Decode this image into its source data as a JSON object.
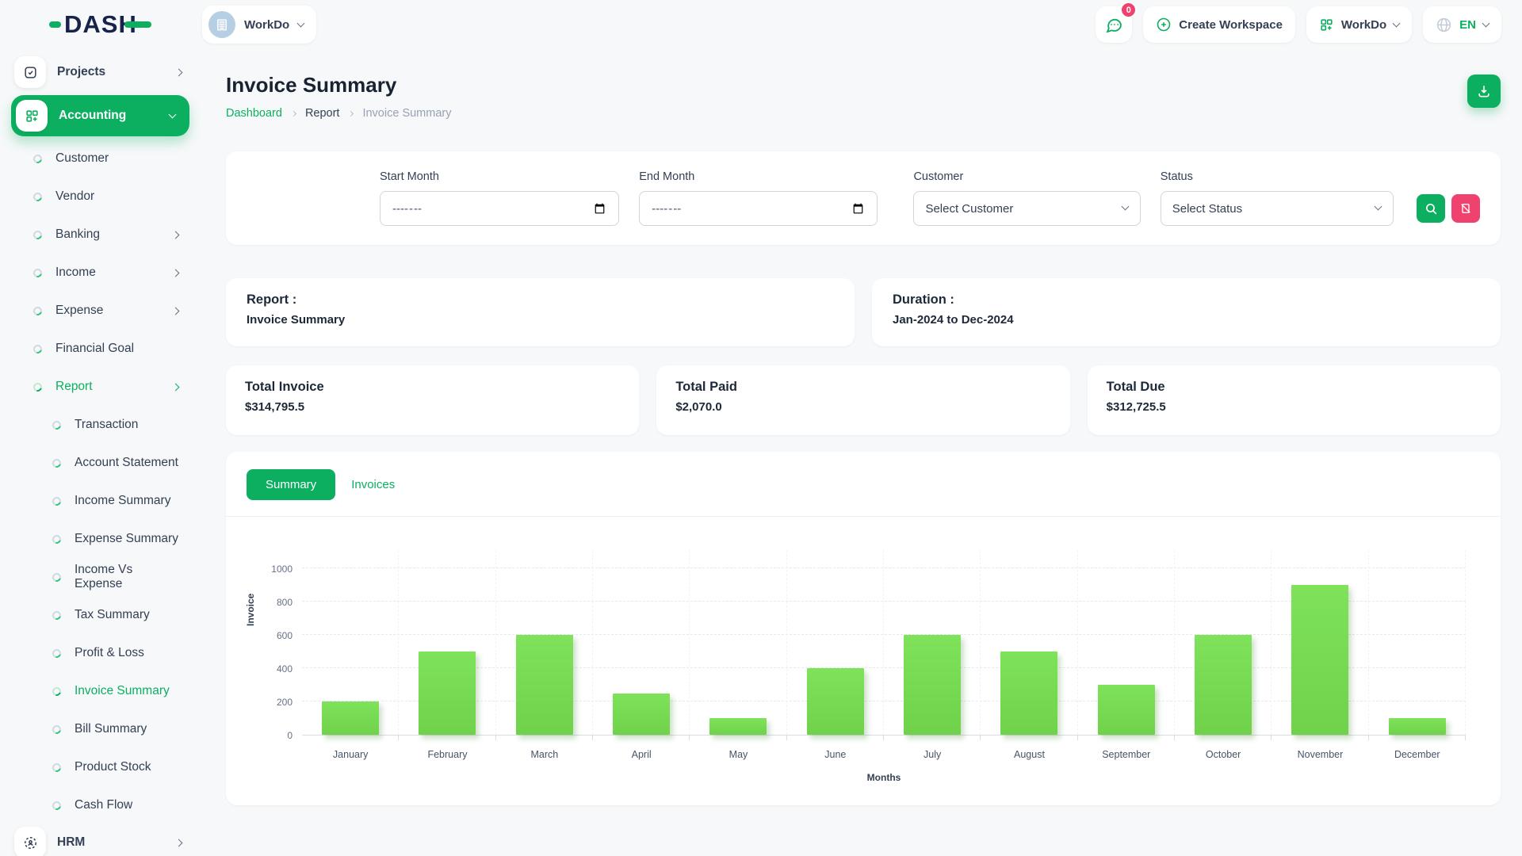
{
  "brand": {
    "logo_text": "DASH"
  },
  "header": {
    "workspace_name": "WorkDo",
    "messages_badge": "0",
    "create_workspace_label": "Create Workspace",
    "account_menu_label": "WorkDo",
    "language": "EN"
  },
  "sidebar": {
    "projects": {
      "label": "Projects"
    },
    "accounting": {
      "label": "Accounting"
    },
    "accounting_children": [
      {
        "label": "Customer"
      },
      {
        "label": "Vendor"
      },
      {
        "label": "Banking"
      },
      {
        "label": "Income"
      },
      {
        "label": "Expense"
      },
      {
        "label": "Financial Goal"
      },
      {
        "label": "Report"
      }
    ],
    "report_children": [
      {
        "label": "Transaction"
      },
      {
        "label": "Account Statement"
      },
      {
        "label": "Income Summary"
      },
      {
        "label": "Expense Summary"
      },
      {
        "label": "Income Vs Expense"
      },
      {
        "label": "Tax Summary"
      },
      {
        "label": "Profit & Loss"
      },
      {
        "label": "Invoice Summary"
      },
      {
        "label": "Bill Summary"
      },
      {
        "label": "Product Stock"
      },
      {
        "label": "Cash Flow"
      }
    ],
    "hrm": {
      "label": "HRM"
    }
  },
  "page": {
    "title": "Invoice Summary",
    "breadcrumb": [
      "Dashboard",
      "Report",
      "Invoice Summary"
    ]
  },
  "filters": {
    "start_month": {
      "label": "Start Month",
      "value": "",
      "placeholder": "--------- ----"
    },
    "end_month": {
      "label": "End Month",
      "value": "",
      "placeholder": "--------- ----"
    },
    "customer": {
      "label": "Customer",
      "value": "Select Customer"
    },
    "status": {
      "label": "Status",
      "value": "Select Status"
    }
  },
  "info_cards": [
    {
      "title": "Report :",
      "value": "Invoice Summary"
    },
    {
      "title": "Duration :",
      "value": "Jan-2024 to Dec-2024"
    }
  ],
  "stats": [
    {
      "label": "Total Invoice",
      "value": "$314,795.5"
    },
    {
      "label": "Total Paid",
      "value": "$2,070.0"
    },
    {
      "label": "Total Due",
      "value": "$312,725.5"
    }
  ],
  "tabs": {
    "summary": "Summary",
    "invoices": "Invoices"
  },
  "chart_data": {
    "type": "bar",
    "title": "",
    "categories": [
      "January",
      "February",
      "March",
      "April",
      "May",
      "June",
      "July",
      "August",
      "September",
      "October",
      "November",
      "December"
    ],
    "values": [
      200,
      500,
      600,
      250,
      100,
      400,
      600,
      500,
      300,
      600,
      900,
      100
    ],
    "series_name": "Invoice",
    "xlabel": "Months",
    "ylabel": "Invoice",
    "ylim": [
      0,
      1000
    ],
    "yticks": [
      0,
      200,
      400,
      600,
      800,
      1000
    ],
    "bar_color": "#76d952",
    "grid": "dashed-horizontal",
    "legend": "none"
  },
  "colors": {
    "accent": "#0caf60",
    "danger": "#f0426e",
    "bar": "#76d952"
  }
}
